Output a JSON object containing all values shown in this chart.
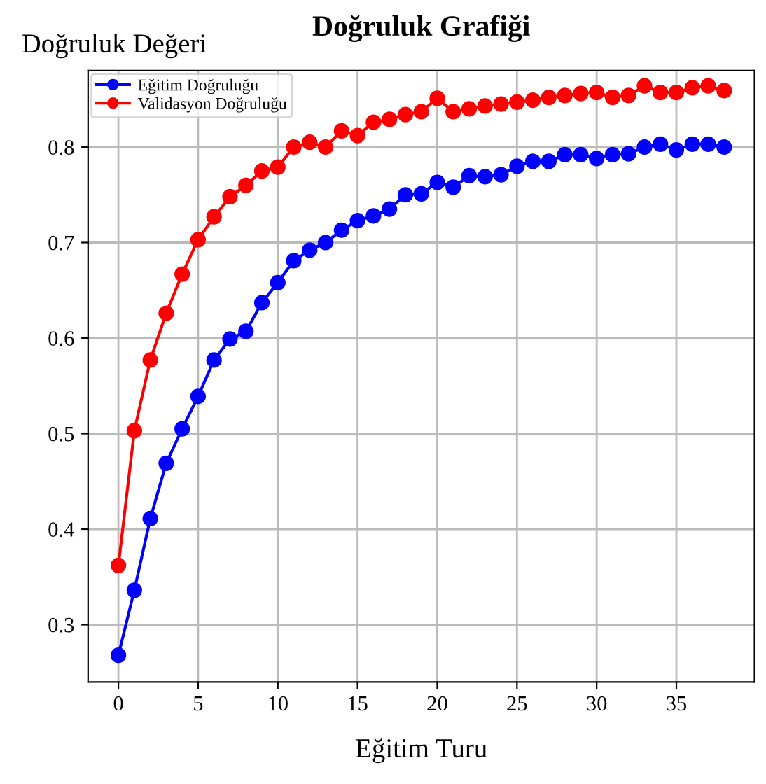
{
  "chart_data": {
    "type": "line",
    "title": "Doğruluk Grafiği",
    "xlabel": "Eğitim Turu",
    "ylabel": "Doğruluk Değeri",
    "x": [
      0,
      1,
      2,
      3,
      4,
      5,
      6,
      7,
      8,
      9,
      10,
      11,
      12,
      13,
      14,
      15,
      16,
      17,
      18,
      19,
      20,
      21,
      22,
      23,
      24,
      25,
      26,
      27,
      28,
      29,
      30,
      31,
      32,
      33,
      34,
      35,
      36,
      37,
      38
    ],
    "series": [
      {
        "name": "Eğitim Doğruluğu",
        "color": "#0000ff",
        "values": [
          0.268,
          0.336,
          0.411,
          0.469,
          0.505,
          0.539,
          0.577,
          0.599,
          0.607,
          0.637,
          0.658,
          0.681,
          0.692,
          0.7,
          0.713,
          0.723,
          0.728,
          0.735,
          0.75,
          0.751,
          0.763,
          0.758,
          0.77,
          0.769,
          0.771,
          0.78,
          0.785,
          0.785,
          0.792,
          0.792,
          0.788,
          0.792,
          0.793,
          0.8,
          0.803,
          0.797,
          0.803,
          0.803,
          0.8
        ]
      },
      {
        "name": "Validasyon Doğruluğu",
        "color": "#ff0000",
        "values": [
          0.362,
          0.503,
          0.577,
          0.626,
          0.667,
          0.703,
          0.727,
          0.748,
          0.76,
          0.775,
          0.779,
          0.8,
          0.805,
          0.8,
          0.817,
          0.812,
          0.826,
          0.829,
          0.834,
          0.837,
          0.851,
          0.837,
          0.84,
          0.843,
          0.845,
          0.847,
          0.849,
          0.852,
          0.854,
          0.856,
          0.857,
          0.852,
          0.854,
          0.864,
          0.857,
          0.857,
          0.862,
          0.864,
          0.859
        ]
      }
    ],
    "xlim": [
      -1.9,
      39.9
    ],
    "ylim": [
      0.24,
      0.88
    ],
    "xticks": [
      0,
      5,
      10,
      15,
      20,
      25,
      30,
      35
    ],
    "yticks": [
      0.3,
      0.4,
      0.5,
      0.6,
      0.7,
      0.8
    ],
    "grid": true,
    "legend": "top left",
    "marker": "circle",
    "line_style": "solid"
  }
}
